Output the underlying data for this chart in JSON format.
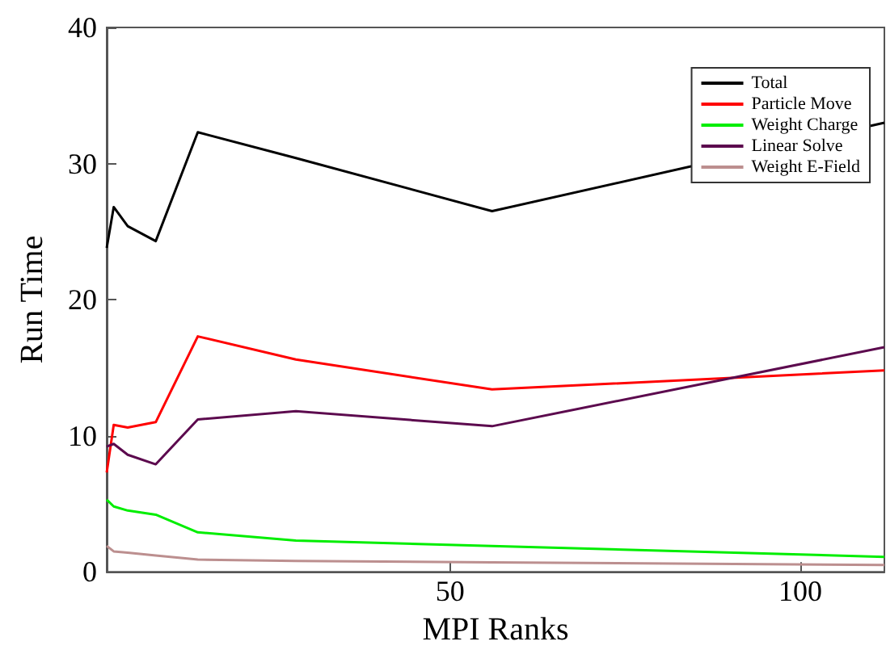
{
  "chart_data": {
    "type": "line",
    "xlabel": "MPI Ranks",
    "ylabel": "Run Time",
    "x": [
      1,
      2,
      4,
      8,
      14,
      28,
      56,
      112
    ],
    "series": [
      {
        "name": "Total",
        "color": "#000000",
        "values": [
          23.8,
          26.8,
          25.4,
          24.3,
          32.3,
          30.4,
          26.5,
          33.0
        ]
      },
      {
        "name": "Particle Move",
        "color": "#ff0000",
        "values": [
          7.3,
          10.8,
          10.6,
          11.0,
          17.3,
          15.6,
          13.4,
          14.8
        ]
      },
      {
        "name": "Weight Charge",
        "color": "#00ee00",
        "values": [
          5.3,
          4.8,
          4.5,
          4.2,
          2.9,
          2.3,
          1.9,
          1.1
        ]
      },
      {
        "name": "Linear Solve",
        "color": "#5c0a4e",
        "values": [
          9.2,
          9.4,
          8.6,
          7.9,
          11.2,
          11.8,
          10.7,
          16.5
        ]
      },
      {
        "name": "Weight E-Field",
        "color": "#bc8f8f",
        "values": [
          1.9,
          1.5,
          1.4,
          1.2,
          0.9,
          0.8,
          0.7,
          0.5
        ]
      }
    ],
    "xlim": [
      1,
      112
    ],
    "xticks": [
      50,
      100
    ],
    "ylim": [
      0,
      40
    ],
    "yticks": [
      0,
      10,
      20,
      30,
      40
    ],
    "grid": false,
    "legend": "top right",
    "marker": "none",
    "line_style": "solid"
  }
}
